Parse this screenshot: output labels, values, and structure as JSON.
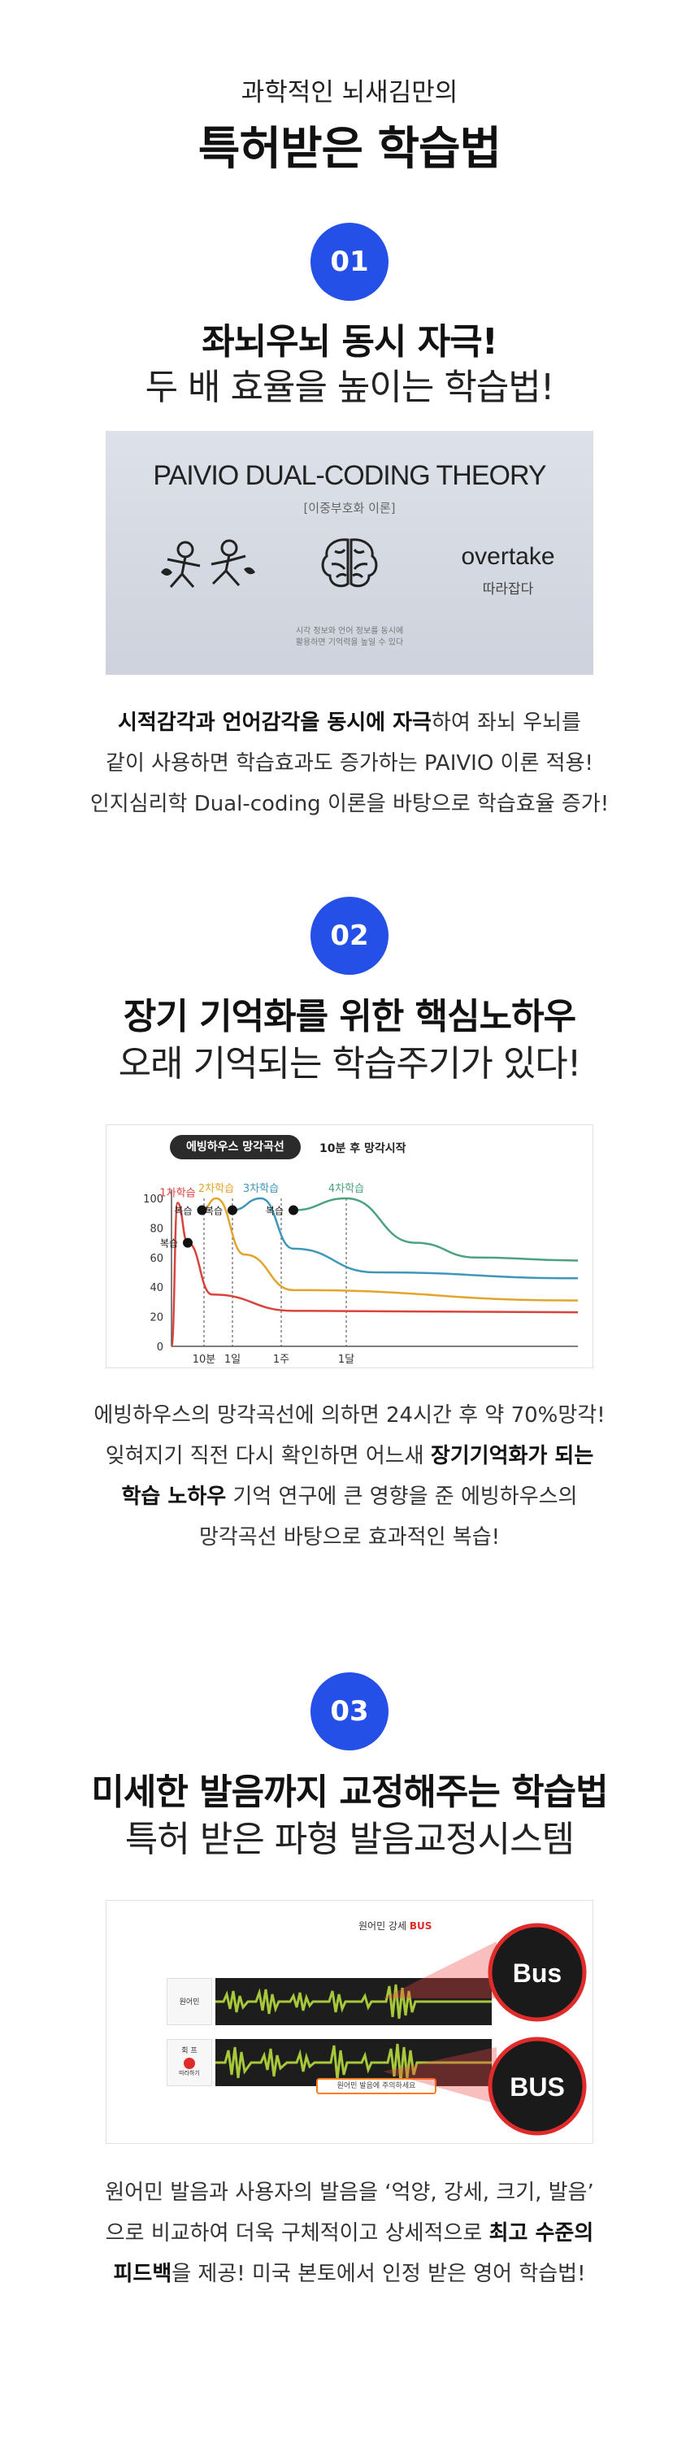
{
  "header": {
    "eyebrow": "과학적인 뇌새김만의",
    "headline": "특허받은 학습법"
  },
  "sections": [
    {
      "badge": "01",
      "title": "좌뇌우뇌 동시 자극!",
      "subtitle": "두 배 효율을 높이는 학습법!",
      "image": {
        "title": "PAIVIO DUAL-CODING THEORY",
        "subtitle": "[이중부호화 이론]",
        "word": "overtake",
        "word_meaning": "따라잡다",
        "footnote_line1": "시각 정보와 언어 정보를 동시에",
        "footnote_line2": "활용하면 기억력을 높일 수 있다"
      },
      "desc": {
        "line1_bold": "시적감각과 언어감각을 동시에 자극",
        "line1_rest": "하여 좌뇌 우뇌를",
        "line2": "같이 사용하면 학습효과도 증가하는 PAIVIO 이론 적용!",
        "line3": "인지심리학 Dual-coding 이론을 바탕으로 학습효율 증가!"
      }
    },
    {
      "badge": "02",
      "title": "장기 기억화를 위한 핵심노하우",
      "subtitle": "오래 기억되는 학습주기가 있다!",
      "image": {
        "pill": "에빙하우스 망각곡선",
        "note": "10분 후 망각시작"
      },
      "desc": {
        "line1": "에빙하우스의 망각곡선에 의하면 24시간 후 약 70%망각!",
        "line2_rest": "잊혀지기 직전 다시 확인하면 어느새 ",
        "line2_bold": "장기기억화가 되는",
        "line3_bold": "학습 노하우",
        "line3_rest": " 기억 연구에 큰 영향을 준 에빙하우스의",
        "line4": "망각곡선 바탕으로 효과적인 복습!"
      }
    },
    {
      "badge": "03",
      "title": "미세한 발음까지 교정해주는 학습법",
      "subtitle": "특허 받은 파형 발음교정시스템",
      "image": {
        "head_prefix": "원어민 강세 ",
        "head_accent": "BUS",
        "row1_label": "원어민",
        "row2_label": "회 프",
        "row2_sub": "따라하기",
        "bubble_text": "Bus",
        "bubble_text2": "BUS",
        "feedback": "원어민 발음에 주의하세요"
      },
      "desc": {
        "line1": "원어민 발음과 사용자의 발음을 ‘억양, 강세, 크기, 발음’",
        "line2_rest": "으로 비교하여 더욱 구체적이고 상세적으로 ",
        "line2_bold": "최고 수준의",
        "line3_bold": "피드백",
        "line3_rest": "을 제공! 미국 본토에서 인정 받은 영어 학습법!"
      }
    }
  ],
  "chart_data": {
    "type": "line",
    "title": "에빙하우스 망각곡선",
    "subtitle": "10분 후 망각시작",
    "x_ticks": [
      "10분",
      "1일",
      "1주",
      "1달"
    ],
    "y_ticks": [
      0,
      20,
      40,
      60,
      80,
      100
    ],
    "ylim": [
      0,
      100
    ],
    "review_label": "복습",
    "series": [
      {
        "name": "1차학습",
        "color": "#d9433a",
        "values": [
          [
            0,
            0
          ],
          [
            0.3,
            97
          ],
          [
            0.8,
            70
          ],
          [
            2,
            35
          ],
          [
            6,
            24
          ],
          [
            20,
            23
          ]
        ]
      },
      {
        "name": "2차학습",
        "color": "#e2a52b",
        "values": [
          [
            1.5,
            92
          ],
          [
            2.2,
            100
          ],
          [
            3.6,
            62
          ],
          [
            6,
            38
          ],
          [
            20,
            31
          ]
        ]
      },
      {
        "name": "3차학습",
        "color": "#3f97b8",
        "values": [
          [
            3,
            92
          ],
          [
            4.4,
            100
          ],
          [
            6,
            66
          ],
          [
            10,
            50
          ],
          [
            20,
            46
          ]
        ]
      },
      {
        "name": "4차학습",
        "color": "#4aa37c",
        "values": [
          [
            6,
            92
          ],
          [
            8.6,
            100
          ],
          [
            12,
            70
          ],
          [
            15,
            60
          ],
          [
            20,
            58
          ]
        ]
      }
    ]
  },
  "colors": {
    "accent": "#2550e8",
    "feedback_border": "#ff7a1a"
  }
}
